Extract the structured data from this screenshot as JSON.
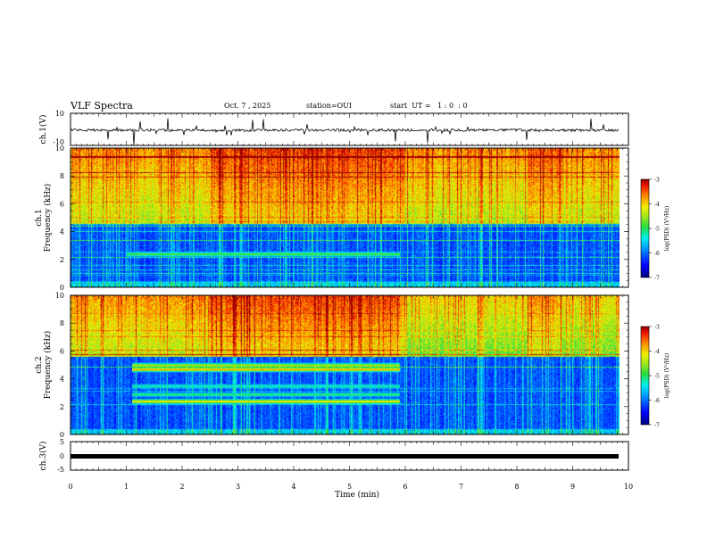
{
  "header": {
    "title": "VLF Spectra",
    "date": "Oct. 7 , 2025",
    "station": "station=OUI",
    "start": "start  UT =   1 : 0  : 0"
  },
  "chart_data": [
    {
      "type": "line",
      "panel": "ch1-waveform",
      "ylabel": "ch.1(V)",
      "ytick_labels": [
        "10",
        "-10"
      ],
      "ylim": [
        -10,
        10
      ],
      "xlim": [
        0,
        10
      ],
      "baseline": -0.5,
      "noise": "spiky"
    },
    {
      "type": "heatmap",
      "panel": "ch1-spectrogram",
      "ylabel": "ch.1\nFrequency (kHz)",
      "ylim": [
        0,
        10
      ],
      "yticks": [
        "0",
        "2",
        "4",
        "6",
        "8",
        "10"
      ],
      "xlim": [
        0,
        9.85
      ],
      "colorbar": {
        "label": "log(PSD) (V²/Hz)",
        "ticks": [
          "-3",
          "-4",
          "-5",
          "-6",
          "-7"
        ],
        "range": [
          -7,
          -3
        ]
      },
      "bands": [
        {
          "t_start": 1.0,
          "t_end": 5.9,
          "f_khz": 2.4,
          "level": -4.6
        }
      ]
    },
    {
      "type": "heatmap",
      "panel": "ch2-spectrogram",
      "ylabel": "ch.2\nFrequency (kHz)",
      "ylim": [
        0,
        10
      ],
      "yticks": [
        "0",
        "2",
        "4",
        "6",
        "8",
        "10"
      ],
      "xlim": [
        0,
        9.85
      ],
      "colorbar": {
        "label": "log(PSD) (V²/Hz)",
        "ticks": [
          "-3",
          "-4",
          "-5",
          "-6",
          "-7"
        ],
        "range": [
          -7,
          -3
        ]
      },
      "bands": [
        {
          "t_start": 1.1,
          "t_end": 5.9,
          "f_khz": 5.0,
          "level": -4.2
        },
        {
          "t_start": 1.1,
          "t_end": 5.9,
          "f_khz": 4.7,
          "level": -3.6
        },
        {
          "t_start": 1.1,
          "t_end": 5.9,
          "f_khz": 3.5,
          "level": -5.0
        },
        {
          "t_start": 1.1,
          "t_end": 5.9,
          "f_khz": 2.9,
          "level": -4.8
        },
        {
          "t_start": 1.1,
          "t_end": 5.9,
          "f_khz": 2.4,
          "level": -3.8
        }
      ]
    },
    {
      "type": "line",
      "panel": "ch3-waveform",
      "ylabel": "ch.3(V)",
      "ytick_labels": [
        "5",
        "0",
        "-5"
      ],
      "ylim": [
        -5,
        5
      ],
      "xlim": [
        0,
        10
      ],
      "baseline": 0
    }
  ],
  "xaxis": {
    "label": "Time (min)",
    "ticks": [
      "0",
      "1",
      "2",
      "3",
      "4",
      "5",
      "6",
      "7",
      "8",
      "9",
      "10"
    ]
  }
}
